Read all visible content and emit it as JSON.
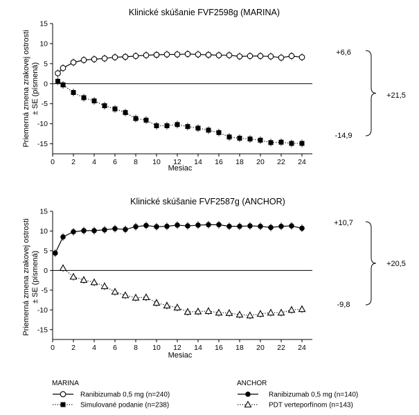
{
  "chart_data": [
    {
      "type": "line",
      "title": "Klinické skúšanie FVF2598g (MARINA)",
      "xlabel": "Mesiac",
      "ylabel_line1": "Priemerná zmena zrakovej ostrosti",
      "ylabel_line2": "± SE (písmená)",
      "xlim": [
        0,
        25
      ],
      "ylim": [
        -17.5,
        15
      ],
      "xticks": [
        0,
        2,
        4,
        6,
        8,
        10,
        12,
        14,
        16,
        18,
        20,
        22,
        24
      ],
      "yticks": [
        15,
        10,
        5,
        0,
        -5,
        -10,
        -15
      ],
      "series": [
        {
          "name": "Ranibizumab 0,5 mg (n=240)",
          "marker": "circle-open",
          "line": "solid",
          "x": [
            0.5,
            1,
            2,
            3,
            4,
            5,
            6,
            7,
            8,
            9,
            10,
            11,
            12,
            13,
            14,
            15,
            16,
            17,
            18,
            19,
            20,
            21,
            22,
            23,
            24
          ],
          "y": [
            2.6,
            3.9,
            5.3,
            5.9,
            6.1,
            6.3,
            6.6,
            6.7,
            6.9,
            7.1,
            7.2,
            7.3,
            7.3,
            7.4,
            7.3,
            7.2,
            7.1,
            7.1,
            6.8,
            6.9,
            6.9,
            6.8,
            6.5,
            6.9,
            6.6
          ]
        },
        {
          "name": "Simulované podanie (n=238)",
          "marker": "square-filled",
          "line": "dotted",
          "x": [
            0.5,
            1,
            2,
            3,
            4,
            5,
            6,
            7,
            8,
            9,
            10,
            11,
            12,
            13,
            14,
            15,
            16,
            17,
            18,
            19,
            20,
            21,
            22,
            23,
            24
          ],
          "y": [
            0.6,
            -0.3,
            -2.2,
            -3.5,
            -4.3,
            -5.5,
            -6.3,
            -7.2,
            -8.7,
            -9.1,
            -10.5,
            -10.5,
            -10.2,
            -10.7,
            -11.1,
            -11.6,
            -12.2,
            -13.3,
            -13.6,
            -13.8,
            -14.1,
            -14.7,
            -14.6,
            -14.9,
            -14.9
          ]
        }
      ],
      "annotations": {
        "top_value": "+6,6",
        "bottom_value": "-14,9",
        "difference": "+21,5"
      }
    },
    {
      "type": "line",
      "title": "Klinické skúšanie FVF2587g (ANCHOR)",
      "xlabel": "Mesiac",
      "ylabel_line1": "Priemerná zmena zrakovej ostrosti",
      "ylabel_line2": "± SE (písmená)",
      "xlim": [
        0,
        25
      ],
      "ylim": [
        -17.5,
        15
      ],
      "xticks": [
        0,
        2,
        4,
        6,
        8,
        10,
        12,
        14,
        16,
        18,
        20,
        22,
        24
      ],
      "yticks": [
        15,
        10,
        5,
        0,
        -5,
        -10,
        -15
      ],
      "series": [
        {
          "name": "Ranibizumab 0,5 mg (n=140)",
          "marker": "circle-filled",
          "line": "solid",
          "x": [
            0.25,
            1,
            2,
            3,
            4,
            5,
            6,
            7,
            8,
            9,
            10,
            11,
            12,
            13,
            14,
            15,
            16,
            17,
            18,
            19,
            20,
            21,
            22,
            23,
            24
          ],
          "y": [
            4.4,
            8.5,
            9.8,
            10.1,
            10.1,
            10.3,
            10.6,
            10.4,
            11.1,
            11.4,
            11.1,
            11.2,
            11.5,
            11.3,
            11.5,
            11.6,
            11.6,
            11.2,
            11.2,
            11.3,
            11.2,
            10.9,
            11.2,
            11.3,
            10.7
          ]
        },
        {
          "name": "PDT verteporfínom (n=143)",
          "marker": "triangle-open",
          "line": "dotted",
          "x": [
            1,
            2,
            3,
            4,
            5,
            6,
            7,
            8,
            9,
            10,
            11,
            12,
            13,
            14,
            15,
            16,
            17,
            18,
            19,
            20,
            21,
            22,
            23,
            24
          ],
          "y": [
            0.6,
            -1.6,
            -2.4,
            -3.0,
            -4.0,
            -5.4,
            -6.3,
            -6.9,
            -6.8,
            -8.2,
            -8.9,
            -9.4,
            -10.5,
            -10.4,
            -10.3,
            -10.7,
            -10.8,
            -11.2,
            -11.4,
            -11.0,
            -10.7,
            -10.7,
            -10.0,
            -9.8
          ]
        }
      ],
      "annotations": {
        "top_value": "+10,7",
        "bottom_value": "-9,8",
        "difference": "+20,5"
      }
    }
  ],
  "legend": {
    "marina": {
      "title": "MARINA",
      "items": [
        "Ranibizumab 0,5 mg (n=240)",
        "Simulované podanie (n=238)"
      ]
    },
    "anchor": {
      "title": "ANCHOR",
      "items": [
        "Ranibizumab 0,5 mg (n=140)",
        "PDT verteporfínom (n=143)"
      ]
    }
  }
}
